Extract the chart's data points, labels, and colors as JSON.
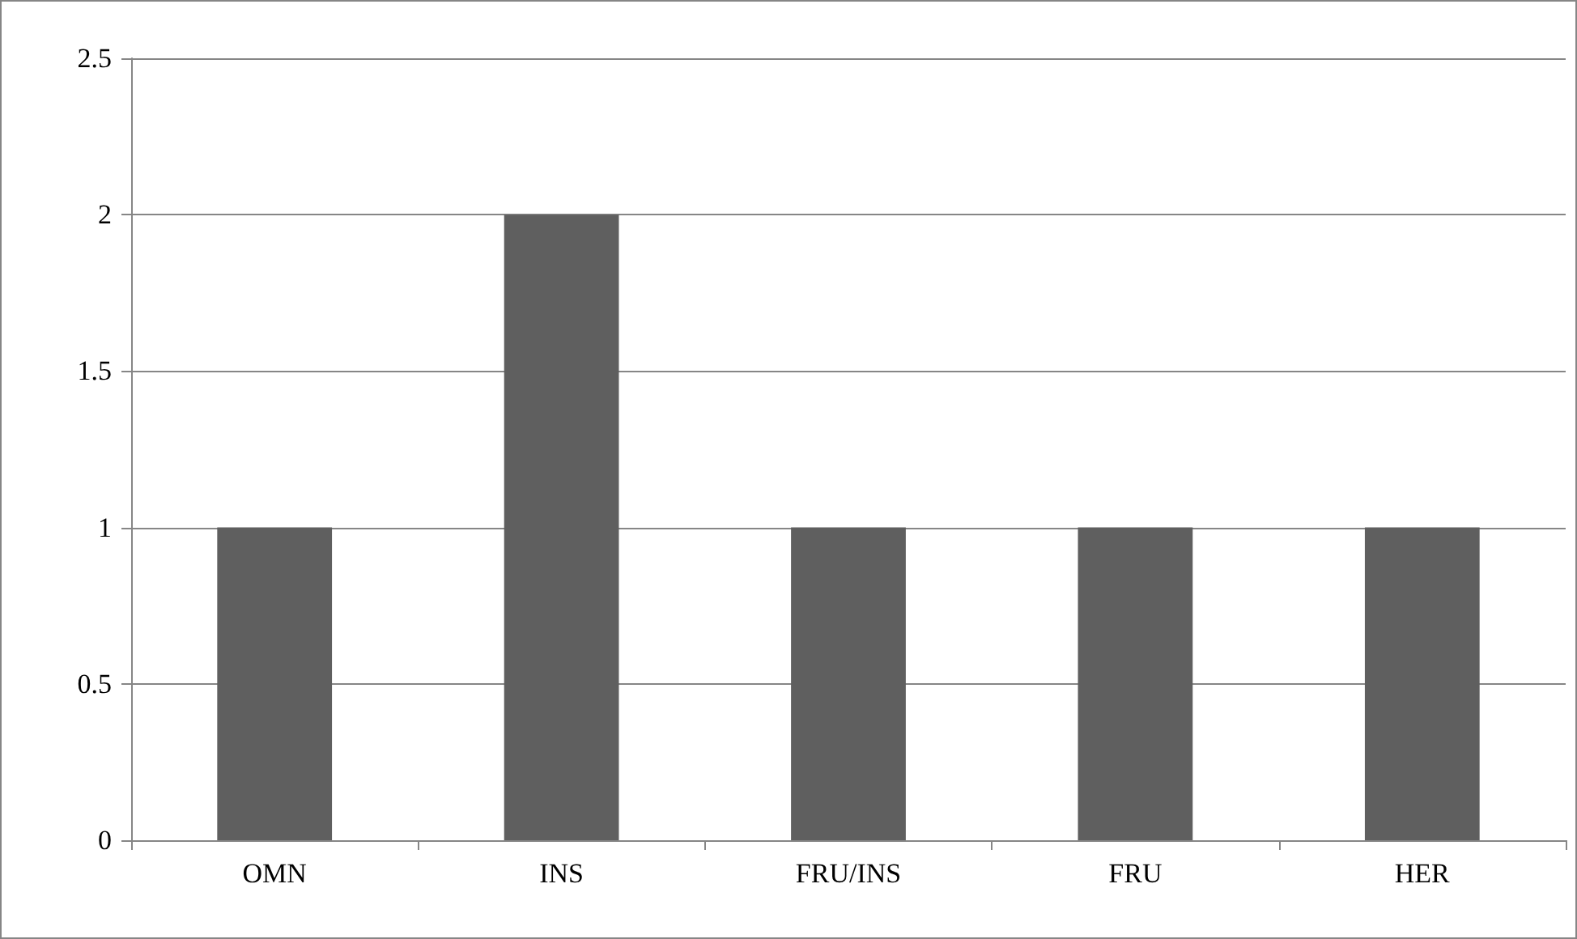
{
  "chart_data": {
    "type": "bar",
    "categories": [
      "OMN",
      "INS",
      "FRU/INS",
      "FRU",
      "HER"
    ],
    "values": [
      1,
      2,
      1,
      1,
      1
    ],
    "color": "#5f5f5f",
    "ylim": [
      0,
      2.5
    ],
    "yticks": [
      0,
      0.5,
      1,
      1.5,
      2,
      2.5
    ],
    "grid": "y"
  }
}
